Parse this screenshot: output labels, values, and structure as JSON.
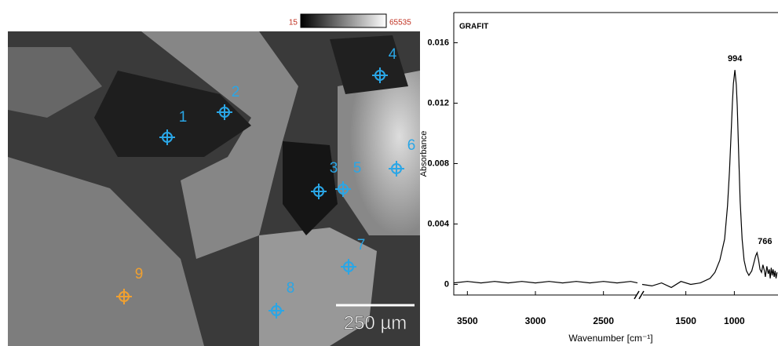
{
  "micrograph": {
    "colorbar_min": 15,
    "colorbar_max": 65535,
    "scale_bar": "250 µm",
    "points": [
      {
        "label": "1",
        "color": "#2aa6e6"
      },
      {
        "label": "2",
        "color": "#2aa6e6"
      },
      {
        "label": "3",
        "color": "#2aa6e6"
      },
      {
        "label": "4",
        "color": "#2aa6e6"
      },
      {
        "label": "5",
        "color": "#2aa6e6"
      },
      {
        "label": "6",
        "color": "#2aa6e6"
      },
      {
        "label": "7",
        "color": "#2aa6e6"
      },
      {
        "label": "8",
        "color": "#2aa6e6"
      },
      {
        "label": "9",
        "color": "#f0a030"
      }
    ]
  },
  "chart_data": {
    "type": "line",
    "title": "GRAFIT",
    "x_label": "Wavenumber [cm⁻¹]",
    "y_label": "Absorbance",
    "xlim": [
      3600,
      550
    ],
    "x_break": [
      2250,
      1950
    ],
    "xticks": [
      3500,
      3000,
      2500,
      1500,
      1000
    ],
    "ylim": [
      -0.0007,
      0.018
    ],
    "yticks": [
      0,
      0.004,
      0.008,
      0.012,
      0.016
    ],
    "series": [
      {
        "name": "GRAFIT",
        "color": "#000000",
        "x": [
          3600,
          3500,
          3400,
          3300,
          3200,
          3100,
          3000,
          2900,
          2800,
          2700,
          2600,
          2500,
          2400,
          2300,
          2250,
          null,
          1950,
          1850,
          1750,
          1650,
          1550,
          1450,
          1350,
          1250,
          1200,
          1150,
          1100,
          1070,
          1050,
          1030,
          1020,
          1010,
          994,
          980,
          970,
          955,
          940,
          920,
          900,
          875,
          850,
          820,
          800,
          780,
          766,
          750,
          735,
          720,
          705,
          690,
          680,
          665,
          650,
          640,
          630,
          620,
          610,
          600,
          590,
          580,
          570,
          560
        ],
        "values": [
          0.0001,
          0.0002,
          0.0001,
          0.0002,
          0.0001,
          0.0002,
          0.0001,
          0.0002,
          0.0001,
          0.0002,
          0.0001,
          0.0002,
          0.0001,
          0.0002,
          0.0001,
          null,
          0.0,
          -0.0001,
          0.0001,
          -0.0002,
          0.0002,
          0.0,
          0.0001,
          0.0004,
          0.0008,
          0.0016,
          0.003,
          0.0052,
          0.0075,
          0.0105,
          0.012,
          0.0133,
          0.0142,
          0.0132,
          0.0118,
          0.0085,
          0.0055,
          0.003,
          0.0016,
          0.0009,
          0.0006,
          0.0009,
          0.0014,
          0.0019,
          0.0021,
          0.0016,
          0.001,
          0.0008,
          0.0013,
          0.0009,
          0.0005,
          0.0012,
          0.0007,
          0.001,
          0.0004,
          0.0011,
          0.0006,
          0.001,
          0.0005,
          0.0009,
          0.0004,
          0.0008
        ]
      }
    ],
    "annotations": [
      {
        "x": 994,
        "y": 0.0142
      },
      {
        "x": 766,
        "y": 0.0021
      }
    ]
  }
}
